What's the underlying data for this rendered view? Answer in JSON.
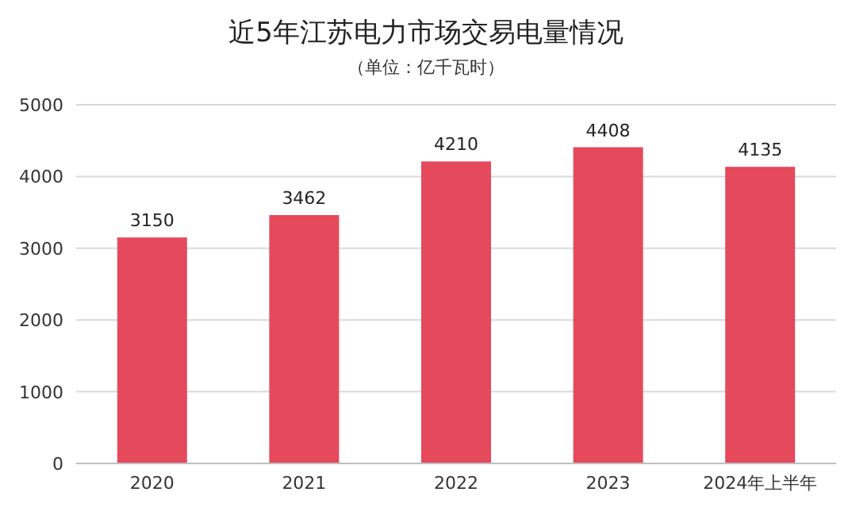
{
  "chart_data": {
    "type": "bar",
    "title": "近5年江苏电力市场交易电量情况",
    "subtitle": "（单位：亿千瓦时）",
    "categories": [
      "2020",
      "2021",
      "2022",
      "2023",
      "2024年上半年"
    ],
    "values": [
      3150,
      3462,
      4210,
      4408,
      4135
    ],
    "color": "#e5495c",
    "ylim": [
      0,
      5000
    ],
    "yticks": [
      0,
      1000,
      2000,
      3000,
      4000,
      5000
    ],
    "grid": "y",
    "data_labels": true
  }
}
